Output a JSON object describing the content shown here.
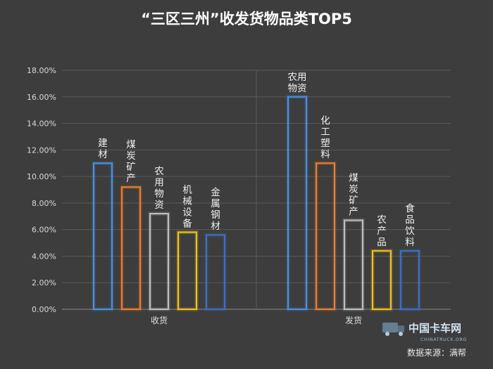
{
  "chart_data": {
    "type": "bar",
    "title": "“三区三州”收发货物品类TOP5",
    "ylim": [
      0,
      0.18
    ],
    "yticks": [
      "0.00%",
      "2.00%",
      "4.00%",
      "6.00%",
      "8.00%",
      "10.00%",
      "12.00%",
      "14.00%",
      "16.00%",
      "18.00%"
    ],
    "grid": true,
    "groups": [
      {
        "name": "收货",
        "bars": [
          {
            "label": "建材",
            "value": 0.11,
            "color": "#4a90e2"
          },
          {
            "label": "煤炭矿产",
            "value": 0.092,
            "color": "#f07d2e"
          },
          {
            "label": "农用物资",
            "value": 0.072,
            "color": "#bfbfbf"
          },
          {
            "label": "机械设备",
            "value": 0.058,
            "color": "#f2c21b"
          },
          {
            "label": "金属钢材",
            "value": 0.056,
            "color": "#3f6fc4"
          }
        ]
      },
      {
        "name": "发货",
        "bars": [
          {
            "label": "农用物资",
            "value": 0.16,
            "color": "#4a90e2"
          },
          {
            "label": "化工塑料",
            "value": 0.11,
            "color": "#f07d2e"
          },
          {
            "label": "煤炭矿产",
            "value": 0.067,
            "color": "#bfbfbf"
          },
          {
            "label": "农产品",
            "value": 0.044,
            "color": "#f2c21b"
          },
          {
            "label": "食品饮料",
            "value": 0.044,
            "color": "#3f6fc4"
          }
        ]
      }
    ]
  },
  "footer": {
    "source": "数据来源：满帮",
    "logo_name": "中国卡车网",
    "logo_url": "CHINATRUCK.ORG"
  }
}
